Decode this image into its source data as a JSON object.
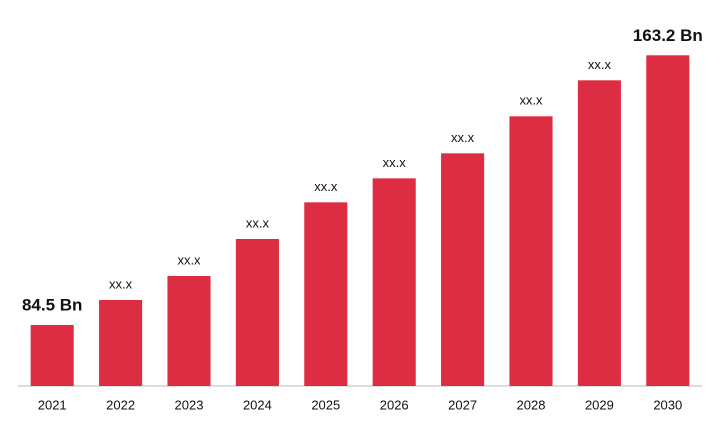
{
  "chart_data": {
    "type": "bar",
    "categories": [
      "2021",
      "2022",
      "2023",
      "2024",
      "2025",
      "2026",
      "2027",
      "2028",
      "2029",
      "2030"
    ],
    "values": [
      84.5,
      91.8,
      98.8,
      109.6,
      120.3,
      127.3,
      134.6,
      145.4,
      155.9,
      163.2
    ],
    "value_labels": [
      "84.5 Bn",
      "xx.x",
      "xx.x",
      "xx.x",
      "xx.x",
      "xx.x",
      "xx.x",
      "xx.x",
      "xx.x",
      "163.2 Bn"
    ],
    "color": "#dc2d42",
    "ylim": [
      66.7,
      170
    ]
  }
}
